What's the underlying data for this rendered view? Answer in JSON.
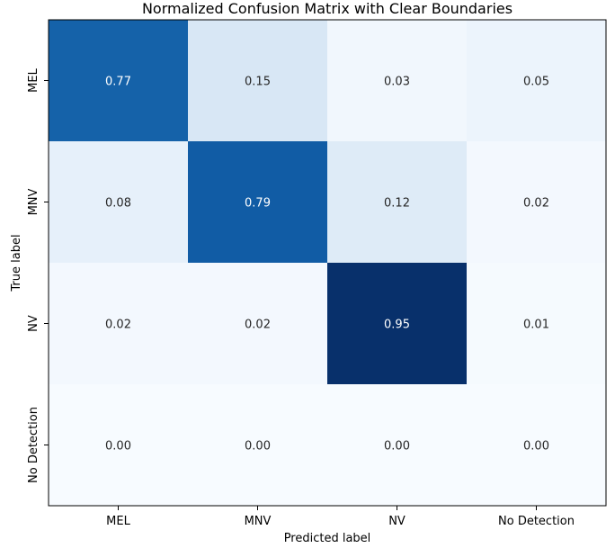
{
  "chart_data": {
    "type": "heatmap",
    "title": "Normalized Confusion Matrix with Clear Boundaries",
    "xlabel": "Predicted label",
    "ylabel": "True label",
    "x_categories": [
      "MEL",
      "MNV",
      "NV",
      "No Detection"
    ],
    "y_categories": [
      "MEL",
      "MNV",
      "NV",
      "No Detection"
    ],
    "values": [
      [
        0.77,
        0.15,
        0.03,
        0.05
      ],
      [
        0.08,
        0.79,
        0.12,
        0.02
      ],
      [
        0.02,
        0.02,
        0.95,
        0.01
      ],
      [
        0.0,
        0.0,
        0.0,
        0.0
      ]
    ],
    "value_format": "0.00",
    "colormap": "Blues",
    "color_range": [
      0,
      0.95
    ],
    "colorbar": false,
    "grid": false
  }
}
